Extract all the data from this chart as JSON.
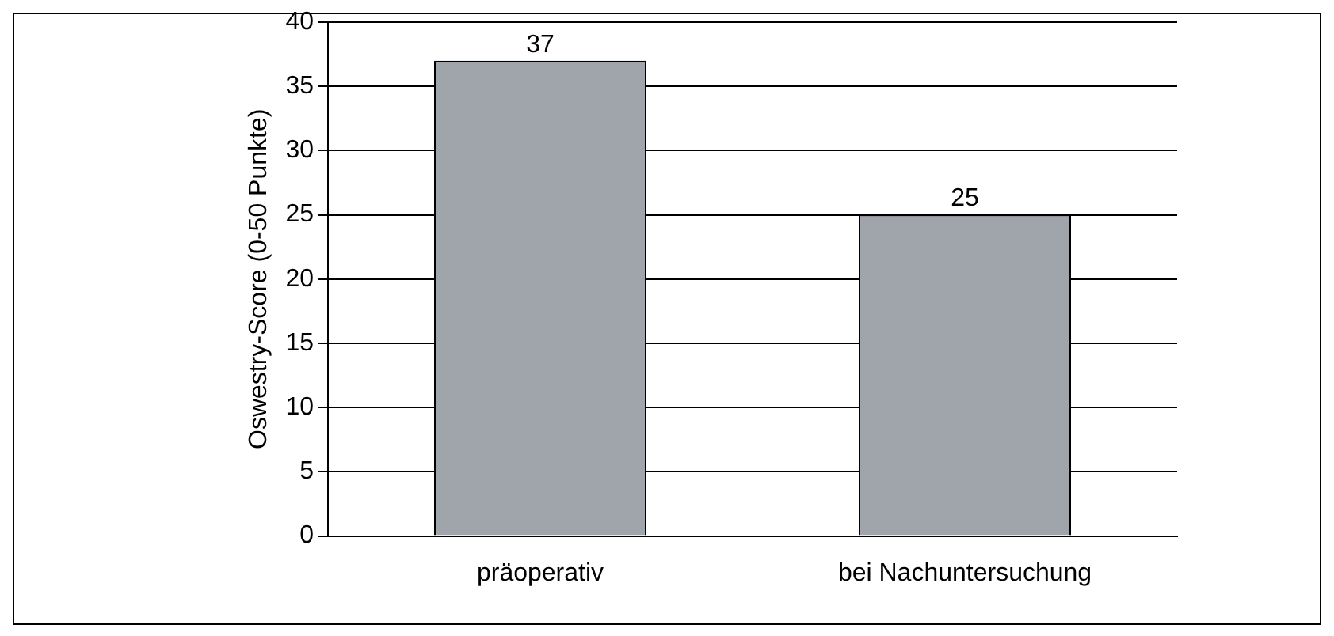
{
  "chart_data": {
    "type": "bar",
    "ylabel": "Oswestry-Score (0-50 Punkte)",
    "categories": [
      "präoperativ",
      "bei Nachuntersuchung"
    ],
    "values": [
      37,
      25
    ],
    "color": "#a0a4ab",
    "ylim": [
      0,
      40
    ],
    "yticks": [
      0,
      5,
      10,
      15,
      20,
      25,
      30,
      35,
      40
    ],
    "grid": "y",
    "data_labels": true
  }
}
